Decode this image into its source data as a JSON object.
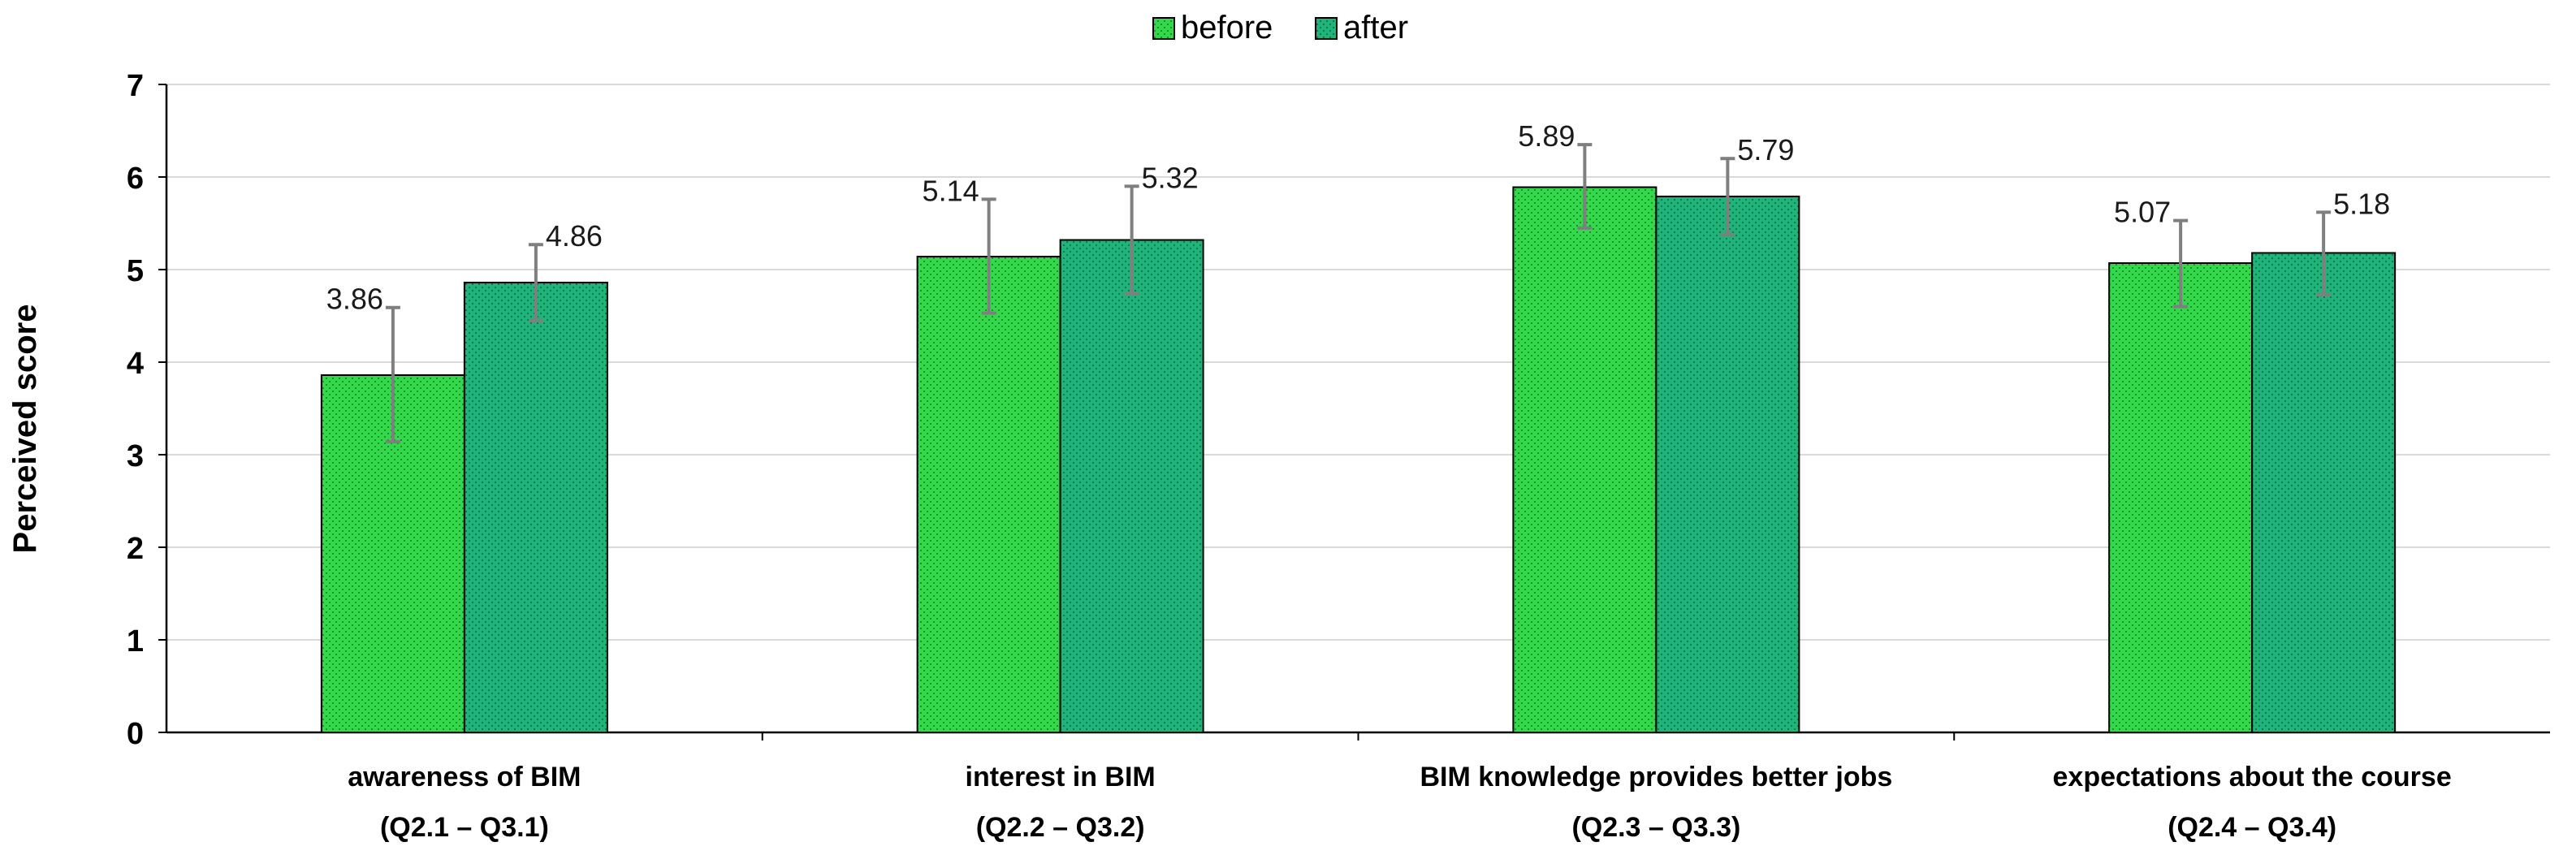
{
  "chart_data": {
    "type": "bar",
    "title": "",
    "xlabel": "",
    "ylabel": "Perceived score",
    "ylim": [
      0,
      7
    ],
    "yticks": [
      0,
      1,
      2,
      3,
      4,
      5,
      6,
      7
    ],
    "grid": true,
    "legend_position": "top-center",
    "categories": [
      {
        "line1": "awareness of BIM",
        "line2": "(Q2.1 – Q3.1)"
      },
      {
        "line1": "interest in BIM",
        "line2": "(Q2.2 – Q3.2)"
      },
      {
        "line1": "BIM knowledge provides better jobs",
        "line2": "(Q2.3 – Q3.3)"
      },
      {
        "line1": "expectations about the course",
        "line2": "(Q2.4 – Q3.4)"
      }
    ],
    "series": [
      {
        "name": "before",
        "color": "#33d94a",
        "values": [
          3.86,
          5.14,
          5.89,
          5.07
        ],
        "labels": [
          "3.86",
          "5.14",
          "5.89",
          "5.07"
        ],
        "error_low": [
          3.14,
          4.53,
          5.45,
          4.6
        ],
        "error_high": [
          4.59,
          5.76,
          6.35,
          5.53
        ]
      },
      {
        "name": "after",
        "color": "#1fb57a",
        "values": [
          4.86,
          5.32,
          5.79,
          5.18
        ],
        "labels": [
          "4.86",
          "5.32",
          "5.79",
          "5.18"
        ],
        "error_low": [
          4.45,
          4.74,
          5.38,
          4.73
        ],
        "error_high": [
          5.27,
          5.9,
          6.2,
          5.62
        ]
      }
    ]
  }
}
